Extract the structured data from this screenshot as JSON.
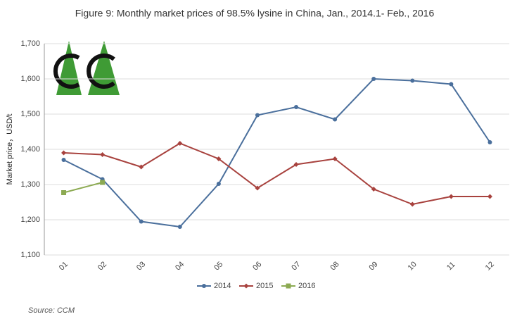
{
  "chart_data": {
    "type": "line",
    "title": "Figure 9: Monthly market prices of 98.5% lysine in China, Jan., 2014.1- Feb., 2016",
    "y_label": "Market price，USD/t",
    "source": "Source: CCM",
    "categories": [
      "01",
      "02",
      "03",
      "04",
      "05",
      "06",
      "07",
      "08",
      "09",
      "10",
      "11",
      "12"
    ],
    "series": [
      {
        "name": "2014",
        "color": "#4a6f9c",
        "marker": "circle",
        "values": [
          1370,
          1315,
          1195,
          1180,
          1302,
          1497,
          1520,
          1485,
          1600,
          1595,
          1585,
          1420
        ]
      },
      {
        "name": "2015",
        "color": "#a8423e",
        "marker": "diamond",
        "values": [
          1390,
          1385,
          1350,
          1417,
          1373,
          1290,
          1357,
          1373,
          1287,
          1244,
          1266,
          1266
        ]
      },
      {
        "name": "2016",
        "color": "#8caa52",
        "marker": "square",
        "values": [
          1277,
          1306,
          null,
          null,
          null,
          null,
          null,
          null,
          null,
          null,
          null,
          null
        ]
      }
    ],
    "ylim": [
      1100,
      1700
    ],
    "yticks": [
      {
        "value": 1100,
        "label": "1,100"
      },
      {
        "value": 1200,
        "label": "1,200"
      },
      {
        "value": 1300,
        "label": "1,300"
      },
      {
        "value": 1400,
        "label": "1,400"
      },
      {
        "value": 1500,
        "label": "1,500"
      },
      {
        "value": 1600,
        "label": "1,600"
      },
      {
        "value": 1700,
        "label": "1,700"
      }
    ],
    "grid": true,
    "legend": "bottom"
  }
}
